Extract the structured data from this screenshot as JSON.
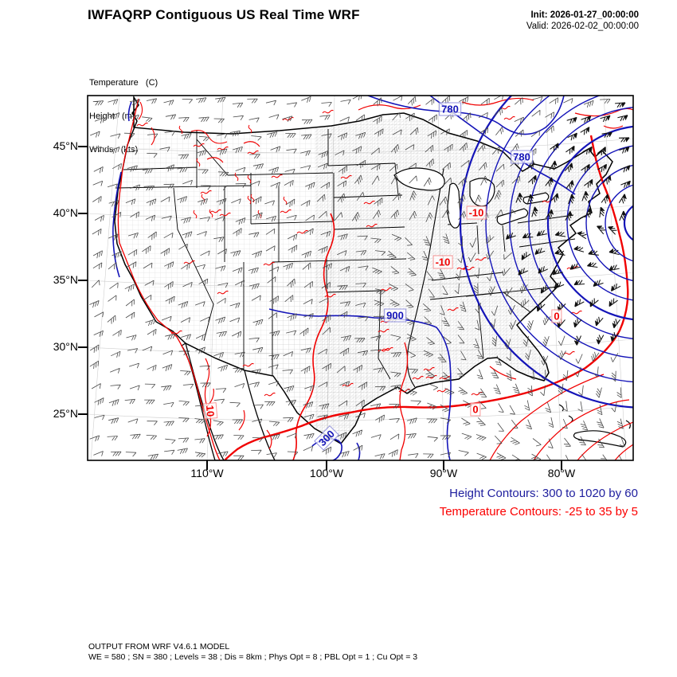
{
  "header": {
    "title": "IWFAQRP Contiguous US Real Time WRF",
    "init": "Init: 2026-01-27_00:00:00",
    "valid": "Valid: 2026-02-02_00:00:00"
  },
  "legend": {
    "temperature": "Temperature   (C)",
    "height": "Height   (m)",
    "winds": "Winds   (kts)"
  },
  "axes": {
    "lat": [
      "45°N",
      "40°N",
      "35°N",
      "30°N",
      "25°N"
    ],
    "lon": [
      "110°W",
      "100°W",
      "90°W",
      "80°W"
    ]
  },
  "notes": {
    "height_contours": "Height Contours: 300 to 1020 by 60",
    "temp_contours": "Temperature Contours: -25 to 35 by 5"
  },
  "footer": {
    "line1": "OUTPUT FROM WRF V4.6.1 MODEL",
    "line2": "WE = 580 ; SN = 380 ; Levels = 38 ; Dis = 8km ; Phys Opt = 8 ; PBL Opt = 1 ; Cu Opt = 3"
  },
  "colors": {
    "height_contour": "#1414b8",
    "temperature_contour": "#f00000",
    "height_note": "#1e1e9e",
    "temperature_note": "#fb0000",
    "state_border": "#000000",
    "county_line": "#a8a8a8",
    "wind_barb": "#4a4a4a"
  },
  "chart_data": {
    "type": "map",
    "title": "IWFAQRP Contiguous US Real Time WRF",
    "model": "WRF V4.6.1",
    "init_time": "2026-01-27_00:00:00",
    "valid_time": "2026-02-02_00:00:00",
    "region": "Contiguous US",
    "lat_ticks_deg_n": [
      45,
      40,
      35,
      30,
      25
    ],
    "lon_ticks_deg_w": [
      110,
      100,
      90,
      80
    ],
    "fields": [
      {
        "name": "Temperature",
        "units": "C",
        "contour_min": -25,
        "contour_max": 35,
        "contour_step": 5,
        "color": "red"
      },
      {
        "name": "Height",
        "units": "m",
        "contour_min": 300,
        "contour_max": 1020,
        "contour_step": 60,
        "color": "blue"
      },
      {
        "name": "Winds",
        "units": "kts",
        "style": "barbs"
      }
    ],
    "contour_labels": [
      {
        "text": "780",
        "field": "height"
      },
      {
        "text": "780",
        "field": "height"
      },
      {
        "text": "900",
        "field": "height"
      },
      {
        "text": "300",
        "field": "height"
      },
      {
        "text": "-10",
        "field": "temperature"
      },
      {
        "text": "-10",
        "field": "temperature"
      },
      {
        "text": "0",
        "field": "temperature"
      },
      {
        "text": "0",
        "field": "temperature"
      },
      {
        "text": "10",
        "field": "temperature"
      }
    ],
    "grid_info": {
      "WE": 580,
      "SN": 380,
      "Levels": 38,
      "Dis": "8km",
      "Phys Opt": 8,
      "PBL Opt": 1,
      "Cu Opt": 3
    }
  }
}
